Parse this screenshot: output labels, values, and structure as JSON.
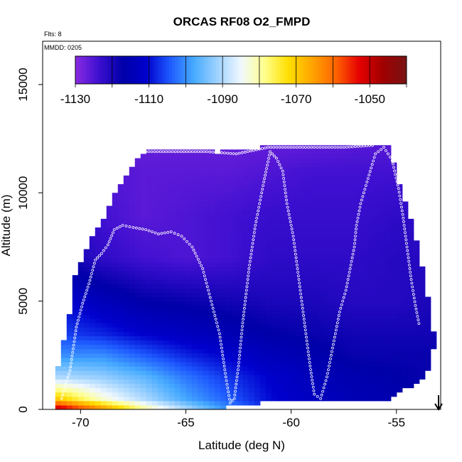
{
  "chart_data": {
    "type": "heatmap",
    "title": "ORCAS RF08 O2_FMPD",
    "flights_label": "Flts: 8",
    "date_label": "MMDD: 0205",
    "xlabel": "Latitude (deg N)",
    "ylabel": "Altitude (m)",
    "xlim": [
      -71.8,
      -52.9
    ],
    "ylim": [
      0,
      17000
    ],
    "x_ticks": [
      -70,
      -65,
      -60,
      -55
    ],
    "x_tick_labels": [
      "-70",
      "-65",
      "-60",
      "-55"
    ],
    "y_ticks": [
      0,
      5000,
      10000,
      15000
    ],
    "y_tick_labels": [
      "0",
      "5000",
      "10000",
      "15000"
    ],
    "colorbar": {
      "min": -1130,
      "max": -1040,
      "tick_values": [
        -1130,
        -1110,
        -1090,
        -1070,
        -1050
      ],
      "tick_labels": [
        "-1130",
        "-1110",
        "-1090",
        "-1070",
        "-1050"
      ],
      "colors": [
        "#8a2be2",
        "#3d0fd0",
        "#0000a8",
        "#0000cd",
        "#1e5aff",
        "#46aaff",
        "#9ed2ff",
        "#f0f8ff",
        "#ffff8c",
        "#ffdf00",
        "#ffa500",
        "#ff6400",
        "#e60000",
        "#a00000",
        "#781414"
      ]
    },
    "envelope": {
      "lat": [
        -71.2,
        -70.5,
        -70.3,
        -69.8,
        -69.3,
        -68.8,
        -68.3,
        -67.8,
        -67.3,
        -66.8,
        -63.7,
        -63.4,
        -63.1,
        -61.4,
        -60.9,
        -55.9,
        -55.3,
        -55.1,
        -54.6,
        -54.1,
        -53.7,
        -53.4,
        -53.3
      ],
      "top": [
        1200,
        4500,
        6000,
        7200,
        8200,
        8900,
        10000,
        10800,
        11400,
        11800,
        11900,
        11700,
        12000,
        12000,
        12200,
        12200,
        12200,
        11000,
        9500,
        8000,
        6000,
        4500,
        3500
      ],
      "bottom": [
        0,
        0,
        0,
        0,
        0,
        0,
        0,
        0,
        0,
        0,
        0,
        0,
        300,
        400,
        450,
        500,
        600,
        800,
        1000,
        1200,
        1500,
        2000,
        2800
      ]
    },
    "anchors": {
      "lat": [
        -71,
        -69,
        -67,
        -65,
        -63,
        -61,
        -59,
        -57,
        -55,
        -53.5
      ],
      "alt": [
        0,
        500,
        1500,
        2500,
        3500,
        5000,
        7000,
        9000,
        11000,
        12500
      ],
      "values": [
        [
          -1048,
          -1062,
          -1078,
          -1090,
          -1100,
          -1108,
          -1112,
          -1114,
          -1116,
          -1118
        ],
        [
          -1070,
          -1082,
          -1090,
          -1098,
          -1104,
          -1110,
          -1113,
          -1115,
          -1116,
          -1118
        ],
        [
          -1090,
          -1092,
          -1096,
          -1102,
          -1107,
          -1111,
          -1114,
          -1116,
          -1117,
          -1118
        ],
        [
          -1100,
          -1100,
          -1104,
          -1108,
          -1111,
          -1114,
          -1116,
          -1118,
          -1118,
          -1118
        ],
        [
          -1106,
          -1108,
          -1111,
          -1113,
          -1115,
          -1117,
          -1118,
          -1119,
          -1119,
          -1119
        ],
        [
          -1110,
          -1114,
          -1117,
          -1118,
          -1119,
          -1120,
          -1120,
          -1121,
          -1121,
          -1120
        ],
        [
          -1118,
          -1122,
          -1124,
          -1125,
          -1124,
          -1122,
          -1122,
          -1122,
          -1121,
          -1121
        ],
        [
          -1122,
          -1124,
          -1126,
          -1125,
          -1124,
          -1123,
          -1123,
          -1123,
          -1122,
          -1122
        ],
        [
          -1124,
          -1125,
          -1126,
          -1126,
          -1126,
          -1125,
          -1124,
          -1124,
          -1124,
          -1124
        ],
        [
          -1126,
          -1127,
          -1127,
          -1127,
          -1127,
          -1127,
          -1127,
          -1126,
          -1126,
          -1126
        ]
      ]
    },
    "flight_track": {
      "lat": [
        -70.9,
        -70.5,
        -70.2,
        -69.9,
        -69.6,
        -69.3,
        -69.0,
        -68.7,
        -68.4,
        -68.0,
        -67.5,
        -66.9,
        -66.3,
        -65.7,
        -65.2,
        -64.7,
        -64.2,
        -63.8,
        -63.4,
        -63.1,
        -62.9,
        -62.7,
        -62.5,
        -62.3,
        -62.0,
        -61.7,
        -61.3,
        -61.0,
        -60.7,
        -60.4,
        -60.2,
        -59.9,
        -59.7,
        -59.5,
        -59.3,
        -59.1,
        -58.9,
        -58.6,
        -58.3,
        -58.0,
        -57.7,
        -57.4,
        -57.2,
        -57.0,
        -56.9,
        -56.7,
        -56.4,
        -56.0,
        -55.6,
        -55.2,
        -54.9,
        -54.7,
        -54.5,
        -54.3,
        -54.1,
        -53.9
      ],
      "alt": [
        500,
        1800,
        3800,
        4900,
        5800,
        6900,
        7200,
        7600,
        8300,
        8500,
        8400,
        8300,
        8100,
        8200,
        8000,
        7500,
        6500,
        5000,
        3500,
        1500,
        300,
        500,
        2000,
        4000,
        6500,
        8500,
        10500,
        11900,
        11600,
        11000,
        9500,
        8000,
        6500,
        5000,
        3500,
        2000,
        700,
        500,
        1500,
        3000,
        4500,
        5500,
        6500,
        7500,
        8500,
        9500,
        10500,
        11800,
        12100,
        11500,
        10200,
        9000,
        7500,
        6000,
        4800,
        3800
      ],
      "extra_lat": [
        -68.4,
        -66.9,
        -65.5,
        -64.0,
        -62.6,
        -61.1,
        -58.9,
        -57.5,
        -56.0
      ],
      "extra_alt": [
        11800,
        11900,
        11900,
        11900,
        11800,
        12100,
        12100,
        12100,
        12200
      ]
    },
    "arrow_lat": -53.0,
    "colors": {
      "track": "#ffffff",
      "axis": "#000000",
      "background": "#ffffff"
    }
  }
}
